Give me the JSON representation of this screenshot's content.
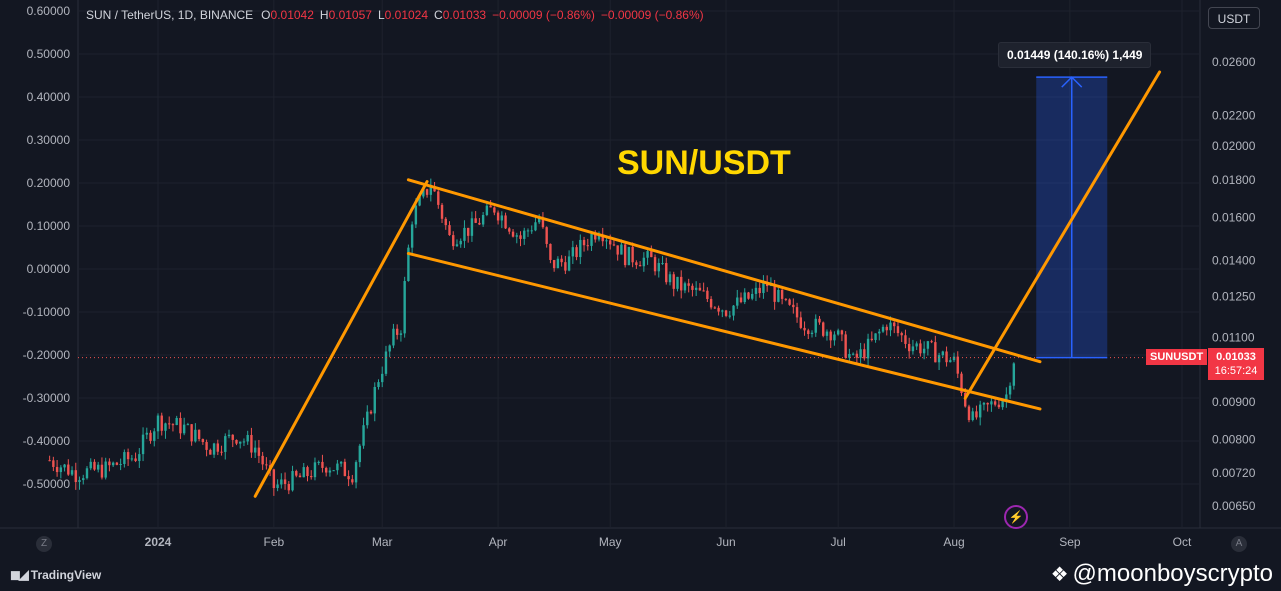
{
  "header": {
    "symbol": "SUN / TetherUS, 1D, BINANCE",
    "open_label": "O",
    "open": "0.01042",
    "high_label": "H",
    "high": "0.01057",
    "low_label": "L",
    "low": "0.01024",
    "close_label": "C",
    "close": "0.01033",
    "change": "−0.00009 (−0.86%)",
    "change2": "−0.00009 (−0.86%)",
    "currency": "USDT"
  },
  "overlay_title": "SUN/USDT",
  "measure_label": "0.01449 (140.16%) 1,449",
  "price_tag": {
    "symbol": "SUNUSDT",
    "price": "0.01033",
    "countdown": "16:57:24"
  },
  "footer": {
    "brand": "TradingView",
    "watermark": "@moonboyscrypto"
  },
  "axis_buttons": {
    "left": "Z",
    "right": "A"
  },
  "colors": {
    "up": "#26a69a",
    "down": "#ef5350",
    "trendline": "#ff9800",
    "measure": "#2962ff",
    "title": "#ffd700",
    "background": "#131722"
  },
  "chart_data": {
    "type": "candlestick",
    "title": "",
    "left_axis": {
      "labels": [
        "0.60000",
        "0.50000",
        "0.40000",
        "0.30000",
        "0.20000",
        "0.10000",
        "0.00000",
        "-0.10000",
        "-0.20000",
        "-0.30000",
        "-0.40000",
        "-0.50000"
      ],
      "range": [
        -0.6,
        0.6
      ]
    },
    "right_axis": {
      "scale": "log",
      "labels": [
        "0.02600",
        "0.02200",
        "0.02000",
        "0.01800",
        "0.01600",
        "0.01400",
        "0.01250",
        "0.01100",
        "0.01000",
        "0.00900",
        "0.00800",
        "0.00720",
        "0.00650"
      ]
    },
    "x_axis": {
      "labels": [
        "2024",
        "Feb",
        "Mar",
        "Apr",
        "May",
        "Jun",
        "Jul",
        "Aug",
        "Sep",
        "Oct"
      ],
      "dates": [
        "2024-01-01",
        "2024-02-01",
        "2024-03-01",
        "2024-04-01",
        "2024-05-01",
        "2024-06-01",
        "2024-07-01",
        "2024-08-01",
        "2024-09-01",
        "2024-10-01"
      ]
    },
    "price_path": [
      [
        "2023-12-03",
        0.0075
      ],
      [
        "2023-12-10",
        0.0072
      ],
      [
        "2023-12-18",
        0.0073
      ],
      [
        "2023-12-26",
        0.0076
      ],
      [
        "2024-01-01",
        0.0085
      ],
      [
        "2024-01-08",
        0.0083
      ],
      [
        "2024-01-15",
        0.0078
      ],
      [
        "2024-01-22",
        0.0081
      ],
      [
        "2024-01-27",
        0.0078
      ],
      [
        "2024-02-01",
        0.0069
      ],
      [
        "2024-02-08",
        0.0071
      ],
      [
        "2024-02-15",
        0.0074
      ],
      [
        "2024-02-22",
        0.0072
      ],
      [
        "2024-02-26",
        0.0085
      ],
      [
        "2024-02-29",
        0.0097
      ],
      [
        "2024-03-04",
        0.011
      ],
      [
        "2024-03-06",
        0.0114
      ],
      [
        "2024-03-09",
        0.016
      ],
      [
        "2024-03-14",
        0.0178
      ],
      [
        "2024-03-19",
        0.015
      ],
      [
        "2024-03-25",
        0.0155
      ],
      [
        "2024-03-31",
        0.0165
      ],
      [
        "2024-04-07",
        0.015
      ],
      [
        "2024-04-12",
        0.016
      ],
      [
        "2024-04-15",
        0.0138
      ],
      [
        "2024-04-20",
        0.014
      ],
      [
        "2024-04-28",
        0.0155
      ],
      [
        "2024-05-05",
        0.0142
      ],
      [
        "2024-05-12",
        0.014
      ],
      [
        "2024-05-18",
        0.013
      ],
      [
        "2024-05-25",
        0.0126
      ],
      [
        "2024-06-01",
        0.012
      ],
      [
        "2024-06-08",
        0.0125
      ],
      [
        "2024-06-12",
        0.013
      ],
      [
        "2024-06-16",
        0.0122
      ],
      [
        "2024-06-22",
        0.0115
      ],
      [
        "2024-06-30",
        0.0112
      ],
      [
        "2024-07-05",
        0.0102
      ],
      [
        "2024-07-10",
        0.0108
      ],
      [
        "2024-07-14",
        0.0115
      ],
      [
        "2024-07-20",
        0.0108
      ],
      [
        "2024-07-25",
        0.0106
      ],
      [
        "2024-08-01",
        0.0102
      ],
      [
        "2024-08-04",
        0.009
      ],
      [
        "2024-08-06",
        0.0085
      ],
      [
        "2024-08-12",
        0.009
      ],
      [
        "2024-08-15",
        0.0092
      ],
      [
        "2024-08-17",
        0.0103
      ]
    ],
    "drawings": {
      "impulse_start": {
        "date": "2024-01-27",
        "price": 0.0067
      },
      "impulse_end": {
        "date": "2024-03-13",
        "price": 0.0179
      },
      "channel_upper": [
        {
          "date": "2024-03-08",
          "price": 0.018
        },
        {
          "date": "2024-08-24",
          "price": 0.0102
        }
      ],
      "channel_lower": [
        {
          "date": "2024-03-08",
          "price": 0.0143
        },
        {
          "date": "2024-08-24",
          "price": 0.0088
        }
      ],
      "projection": [
        {
          "date": "2024-08-04",
          "price": 0.0091
        },
        {
          "date": "2024-09-25",
          "price": 0.0252
        }
      ],
      "measure_box": {
        "from_date": "2024-08-23",
        "to_date": "2024-09-11",
        "from_price": 0.01033,
        "to_price": 0.0248
      }
    },
    "last_price": 0.01033
  }
}
